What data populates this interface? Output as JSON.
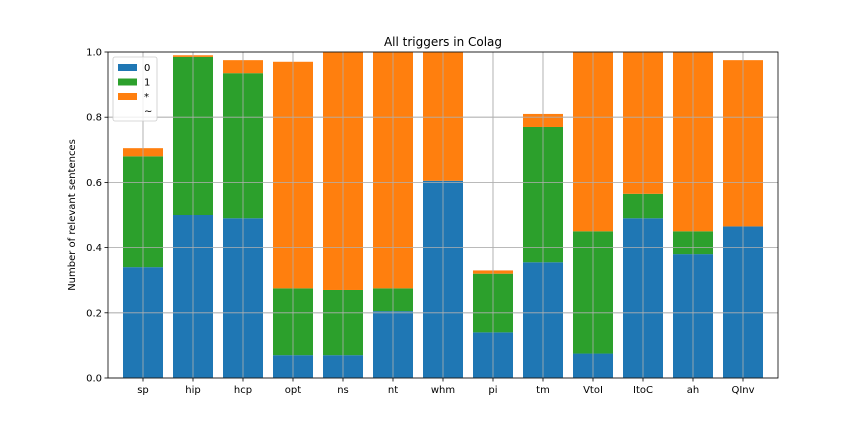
{
  "chart_data": {
    "type": "bar",
    "stacked": true,
    "title": "All triggers in Colag",
    "xlabel": "",
    "ylabel": "Number of relevant sentences",
    "ylim": [
      0,
      1.0
    ],
    "yticks": [
      "0.0",
      "0.2",
      "0.4",
      "0.6",
      "0.8",
      "1.0"
    ],
    "grid": true,
    "legend_position": "top-left",
    "categories": [
      "sp",
      "hip",
      "hcp",
      "opt",
      "ns",
      "nt",
      "whm",
      "pi",
      "tm",
      "VtoI",
      "ItoC",
      "ah",
      "QInv"
    ],
    "series": [
      {
        "name": "0",
        "color": "#1f77b4",
        "values": [
          0.34,
          0.5,
          0.49,
          0.07,
          0.07,
          0.205,
          0.605,
          0.14,
          0.355,
          0.075,
          0.49,
          0.38,
          0.465
        ]
      },
      {
        "name": "1",
        "color": "#2ca02c",
        "values": [
          0.34,
          0.485,
          0.445,
          0.205,
          0.2,
          0.07,
          0.0,
          0.18,
          0.415,
          0.375,
          0.075,
          0.07,
          0.0
        ]
      },
      {
        "name": "*",
        "color": "#ff7f0e",
        "values": [
          0.025,
          0.005,
          0.04,
          0.695,
          0.73,
          0.725,
          0.395,
          0.01,
          0.04,
          0.55,
          0.435,
          0.55,
          0.51
        ]
      },
      {
        "name": "~",
        "color": "#ffffff",
        "values": [
          0,
          0,
          0,
          0,
          0,
          0,
          0,
          0,
          0,
          0,
          0,
          0,
          0
        ]
      }
    ]
  }
}
